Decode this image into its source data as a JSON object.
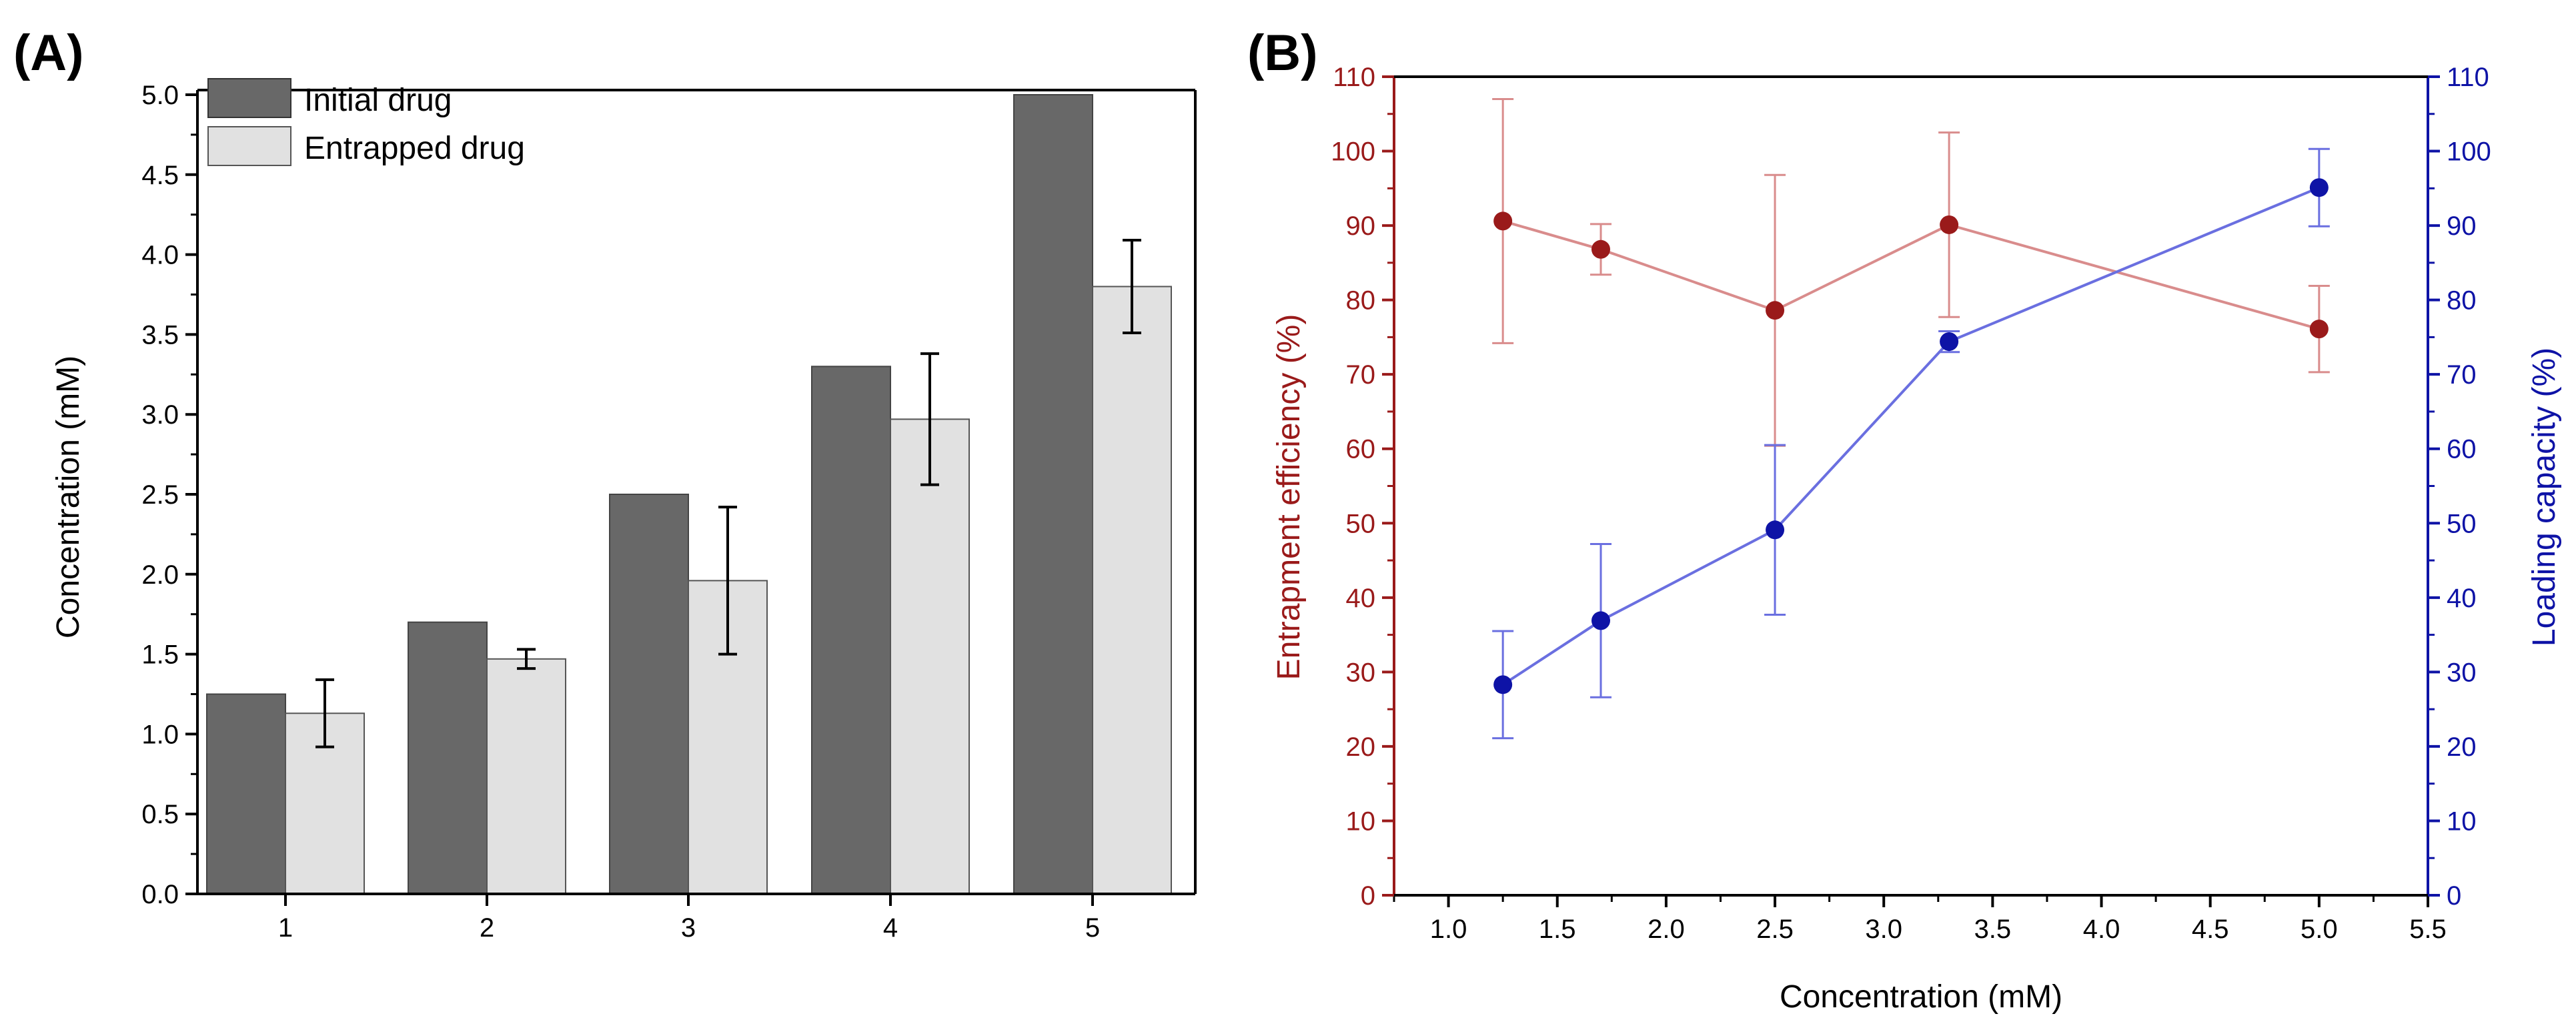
{
  "colors": {
    "initial_bar": "#686868",
    "entrapped_bar": "#e1e1e1",
    "efficiency": "#9a1a1a",
    "efficiency_line": "#d98c8c",
    "loading": "#0e13a6",
    "loading_line": "#6a6fe0",
    "axis": "#000000"
  },
  "chart_data": [
    {
      "type": "bar",
      "panel_label": "(A)",
      "title": "",
      "xlabel": "",
      "ylabel": "Concentration (mM)",
      "categories": [
        "1",
        "2",
        "3",
        "4",
        "5"
      ],
      "ylim": [
        0,
        5.0
      ],
      "yticks": [
        0.0,
        0.5,
        1.0,
        1.5,
        2.0,
        2.5,
        3.0,
        3.5,
        4.0,
        4.5,
        5.0
      ],
      "ytick_labels": [
        "0.0",
        "0.5",
        "1.0",
        "1.5",
        "2.0",
        "2.5",
        "3.0",
        "3.5",
        "4.0",
        "4.5",
        "5.0"
      ],
      "legend": "top-left",
      "series": [
        {
          "name": "Initial drug",
          "values": [
            1.25,
            1.7,
            2.5,
            3.3,
            5.0
          ]
        },
        {
          "name": "Entrapped drug",
          "values": [
            1.13,
            1.47,
            1.96,
            2.97,
            3.8
          ],
          "errors": [
            0.21,
            0.06,
            0.46,
            0.41,
            0.29
          ]
        }
      ]
    },
    {
      "type": "line",
      "panel_label": "(B)",
      "title": "",
      "xlabel": "Concentration (mM)",
      "ylabel": "Entrapment efficiency (%)",
      "y2label": "Loading capacity (%)",
      "xlim": [
        0.75,
        5.5
      ],
      "xticks": [
        1.0,
        1.5,
        2.0,
        2.5,
        3.0,
        3.5,
        4.0,
        4.5,
        5.0,
        5.5
      ],
      "xtick_labels": [
        "1.0",
        "1.5",
        "2.0",
        "2.5",
        "3.0",
        "3.5",
        "4.0",
        "4.5",
        "5.0",
        "5.5"
      ],
      "ylim": [
        0,
        110
      ],
      "yticks": [
        0,
        10,
        20,
        30,
        40,
        50,
        60,
        70,
        80,
        90,
        100,
        110
      ],
      "ytick_labels": [
        "0",
        "10",
        "20",
        "30",
        "40",
        "50",
        "60",
        "70",
        "80",
        "90",
        "100",
        "110"
      ],
      "x": [
        1.25,
        1.7,
        2.5,
        3.3,
        5.0
      ],
      "series": [
        {
          "name": "Entrapment efficiency",
          "axis": "left",
          "values": [
            90.6,
            86.8,
            78.6,
            90.1,
            76.1
          ],
          "errors": [
            16.4,
            3.4,
            18.2,
            12.4,
            5.8
          ]
        },
        {
          "name": "Loading capacity",
          "axis": "right",
          "values": [
            28.3,
            36.9,
            49.1,
            74.4,
            95.1
          ],
          "errors": [
            7.2,
            10.3,
            11.4,
            1.4,
            5.2
          ]
        }
      ]
    }
  ]
}
